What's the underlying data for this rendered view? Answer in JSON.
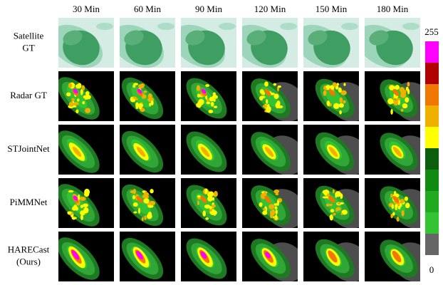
{
  "columns": [
    "30 Min",
    "60 Min",
    "90 Min",
    "120 Min",
    "150 Min",
    "180 Min"
  ],
  "rows": [
    {
      "label": [
        "Satellite",
        "GT"
      ]
    },
    {
      "label": [
        "Radar GT"
      ]
    },
    {
      "label": [
        "STJointNet"
      ]
    },
    {
      "label": [
        "PiMMNet"
      ]
    },
    {
      "label": [
        "HARECast",
        "(Ours)"
      ]
    }
  ],
  "colorbar": {
    "max": "255",
    "min": "0"
  }
}
